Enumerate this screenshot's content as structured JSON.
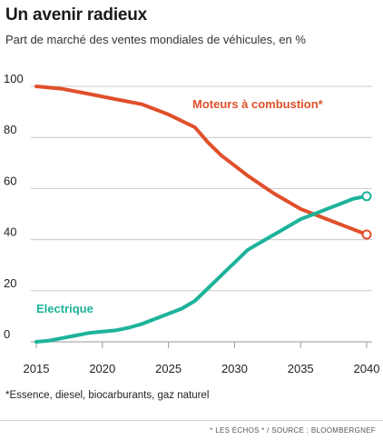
{
  "header": {
    "title": "Un avenir radieux",
    "subtitle": "Part de marché des ventes mondiales de véhicules, en %"
  },
  "footer": {
    "footnote": "*Essence, diesel, biocarburants, gaz naturel",
    "source": "* LES ÉCHOS * / SOURCE : BLOOMBERGNEF"
  },
  "chart_data": {
    "type": "line",
    "title": "Un avenir radieux",
    "subtitle": "Part de marché des ventes mondiales de véhicules, en %",
    "xlabel": "",
    "ylabel": "",
    "xlim": [
      2015,
      2040
    ],
    "ylim": [
      0,
      100
    ],
    "x_ticks": [
      2015,
      2020,
      2025,
      2030,
      2035,
      2040
    ],
    "y_ticks": [
      0,
      20,
      40,
      60,
      80,
      100
    ],
    "grid": "horizontal",
    "series": [
      {
        "name": "Moteurs à combustion*",
        "color": "#e0502b",
        "x": [
          2015,
          2017,
          2019,
          2021,
          2023,
          2025,
          2027,
          2028,
          2029,
          2030,
          2031,
          2032,
          2033,
          2034,
          2035,
          2036,
          2037,
          2038,
          2039,
          2040
        ],
        "values": [
          100,
          99,
          97,
          95,
          93,
          89,
          84,
          78,
          73,
          69,
          65,
          61.5,
          58,
          55,
          52,
          50,
          48,
          46,
          44,
          42
        ]
      },
      {
        "name": "Electrique",
        "color": "#1db39a",
        "x": [
          2015,
          2016,
          2017,
          2018,
          2019,
          2020,
          2021,
          2022,
          2023,
          2024,
          2025,
          2026,
          2027,
          2028,
          2029,
          2030,
          2031,
          2032,
          2033,
          2034,
          2035,
          2036,
          2037,
          2038,
          2039,
          2040
        ],
        "values": [
          0,
          0.5,
          1.5,
          2.5,
          3.5,
          4,
          4.5,
          5.5,
          7,
          9,
          11,
          13,
          16,
          21,
          26,
          31,
          36,
          39,
          42,
          45,
          48,
          50,
          52,
          54,
          56,
          57
        ]
      }
    ]
  }
}
